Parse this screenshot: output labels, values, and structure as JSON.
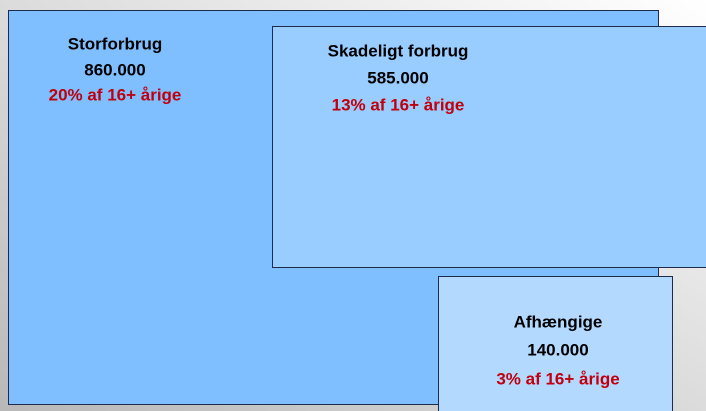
{
  "nodes": [
    {
      "label": "Storforbrug",
      "value": "860.000",
      "share": "20% af 16+ årige"
    },
    {
      "label": "Skadeligt forbrug",
      "value": "585.000",
      "share": "13% af 16+ årige"
    },
    {
      "label": "Afhængige",
      "value": "140.000",
      "share": "3% af 16+ årige"
    }
  ]
}
